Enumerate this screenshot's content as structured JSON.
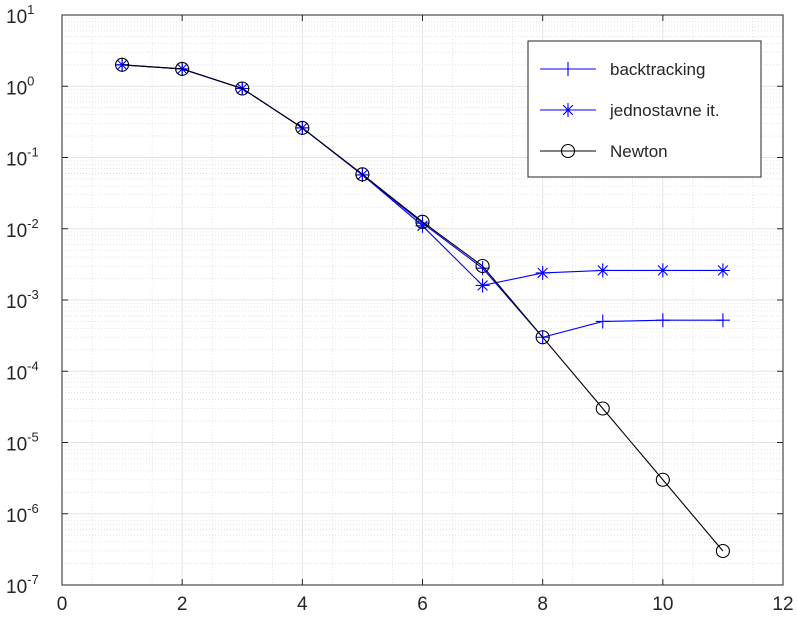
{
  "chart_data": {
    "type": "line",
    "title": "",
    "xlabel": "",
    "ylabel": "",
    "xlim": [
      0,
      12
    ],
    "ylim": [
      1e-07,
      10
    ],
    "yscale": "log",
    "grid": true,
    "minor_grid": true,
    "legend_position": "top-right",
    "x_ticks": [
      0,
      2,
      4,
      6,
      8,
      10,
      12
    ],
    "x_tick_labels": [
      "0",
      "2",
      "4",
      "6",
      "8",
      "10",
      "12"
    ],
    "y_ticks": [
      {
        "value": 10,
        "base": "10",
        "exp": "1"
      },
      {
        "value": 1,
        "base": "10",
        "exp": "0"
      },
      {
        "value": 0.1,
        "base": "10",
        "exp": "-1"
      },
      {
        "value": 0.01,
        "base": "10",
        "exp": "-2"
      },
      {
        "value": 0.001,
        "base": "10",
        "exp": "-3"
      },
      {
        "value": 0.0001,
        "base": "10",
        "exp": "-4"
      },
      {
        "value": 1e-05,
        "base": "10",
        "exp": "-5"
      },
      {
        "value": 1e-06,
        "base": "10",
        "exp": "-6"
      },
      {
        "value": 1e-07,
        "base": "10",
        "exp": "-7"
      }
    ],
    "series": [
      {
        "name": "backtracking",
        "color": "#0000ff",
        "marker": "plus",
        "x": [
          1,
          2,
          3,
          4,
          5,
          6,
          7,
          8,
          9,
          10,
          11
        ],
        "y": [
          2.0,
          1.75,
          0.93,
          0.26,
          0.057,
          0.012,
          0.0028,
          0.0003,
          0.0005,
          0.00052,
          0.00052
        ]
      },
      {
        "name": "jednostavne it.",
        "color": "#0000ff",
        "marker": "asterisk",
        "x": [
          1,
          2,
          3,
          4,
          5,
          6,
          7,
          8,
          9,
          10,
          11
        ],
        "y": [
          2.0,
          1.75,
          0.93,
          0.26,
          0.057,
          0.011,
          0.0016,
          0.0024,
          0.0026,
          0.0026,
          0.0026
        ]
      },
      {
        "name": "Newton",
        "color": "#000000",
        "marker": "circle",
        "x": [
          1,
          2,
          3,
          4,
          5,
          6,
          7,
          8,
          9,
          10,
          11
        ],
        "y": [
          2.0,
          1.75,
          0.93,
          0.26,
          0.058,
          0.0125,
          0.003,
          0.0003,
          3e-05,
          3e-06,
          3e-07
        ]
      }
    ]
  }
}
